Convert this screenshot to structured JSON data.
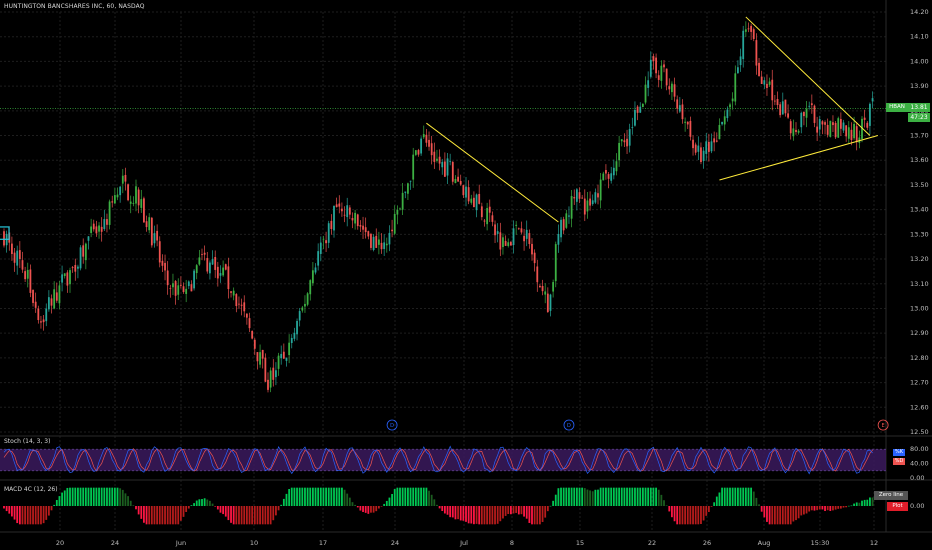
{
  "header": {
    "title": "HUNTINGTON BANCSHARES INC, 60, NASDAQ"
  },
  "price_scale": {
    "ticker_tag": "HBAN",
    "last_price": "13.81",
    "countdown": "47:23",
    "tag_color": "#3cb043"
  },
  "stoch": {
    "label": "Stoch (14, 3, 3)",
    "k_label": "%K",
    "d_label": "%D",
    "k_color": "#2962ff",
    "d_color": "#ef5350",
    "band_color": "#3b1a5e",
    "ticks": [
      "80.00",
      "40.00",
      "0.00"
    ],
    "tick_values": [
      80,
      40,
      0
    ]
  },
  "macd": {
    "label": "MACD 4C (12, 26)",
    "zero_line_label": "Zero line",
    "plot_label": "Plot",
    "zero_tick": "0.00"
  },
  "events": [
    {
      "label": "D",
      "x_index": 147,
      "color": "#2962ff"
    },
    {
      "label": "D",
      "x_index": 214,
      "color": "#2962ff"
    },
    {
      "label": "E",
      "x_index": 333,
      "color": "#ef5350"
    }
  ],
  "colors": {
    "up": "#26a69a",
    "up_bright": "#3cb043",
    "down": "#ef5350",
    "trendline": "#ffeb3b",
    "grid": "#1e1e1e",
    "price_line": "#3cb043"
  },
  "chart_data": {
    "type": "candlestick",
    "title": "HUNTINGTON BANCSHARES INC, 60, NASDAQ",
    "ylim": [
      12.5,
      14.2
    ],
    "y_ticks": [
      14.2,
      14.1,
      14.0,
      13.9,
      13.8,
      13.7,
      13.6,
      13.5,
      13.4,
      13.3,
      13.2,
      13.1,
      13.0,
      12.9,
      12.8,
      12.7,
      12.6,
      12.5
    ],
    "x_ticks": [
      "20",
      "24",
      "Jun",
      "10",
      "17",
      "24",
      "Jul",
      "8",
      "15",
      "22",
      "26",
      "Aug",
      "15:30",
      "12"
    ],
    "last_price": 13.81,
    "close_path": [
      [
        0,
        13.3
      ],
      [
        8,
        13.15
      ],
      [
        14,
        12.95
      ],
      [
        22,
        13.1
      ],
      [
        30,
        13.25
      ],
      [
        38,
        13.35
      ],
      [
        45,
        13.5
      ],
      [
        50,
        13.45
      ],
      [
        56,
        13.3
      ],
      [
        62,
        13.1
      ],
      [
        68,
        13.05
      ],
      [
        75,
        13.2
      ],
      [
        82,
        13.15
      ],
      [
        88,
        13.05
      ],
      [
        95,
        12.85
      ],
      [
        100,
        12.7
      ],
      [
        106,
        12.8
      ],
      [
        112,
        12.95
      ],
      [
        118,
        13.2
      ],
      [
        126,
        13.4
      ],
      [
        134,
        13.35
      ],
      [
        142,
        13.25
      ],
      [
        150,
        13.4
      ],
      [
        158,
        13.7
      ],
      [
        164,
        13.6
      ],
      [
        170,
        13.55
      ],
      [
        177,
        13.45
      ],
      [
        184,
        13.35
      ],
      [
        190,
        13.25
      ],
      [
        196,
        13.35
      ],
      [
        202,
        13.15
      ],
      [
        206,
        13.0
      ],
      [
        210,
        13.3
      ],
      [
        216,
        13.45
      ],
      [
        222,
        13.4
      ],
      [
        228,
        13.55
      ],
      [
        234,
        13.65
      ],
      [
        240,
        13.8
      ],
      [
        246,
        14.0
      ],
      [
        252,
        13.9
      ],
      [
        258,
        13.75
      ],
      [
        264,
        13.6
      ],
      [
        270,
        13.7
      ],
      [
        276,
        13.85
      ],
      [
        281,
        14.15
      ],
      [
        287,
        13.95
      ],
      [
        293,
        13.85
      ],
      [
        299,
        13.7
      ],
      [
        305,
        13.8
      ],
      [
        311,
        13.7
      ],
      [
        317,
        13.75
      ],
      [
        323,
        13.7
      ],
      [
        329,
        13.81
      ]
    ],
    "stoch_ylim": [
      0,
      100
    ],
    "macd_ylim": [
      -0.06,
      0.06
    ],
    "trendlines": [
      {
        "name": "June descending",
        "from": [
          160,
          13.75
        ],
        "to": [
          210,
          13.35
        ]
      },
      {
        "name": "July upper",
        "from": [
          281,
          14.18
        ],
        "to": [
          328,
          13.7
        ]
      },
      {
        "name": "July lower",
        "from": [
          271,
          13.52
        ],
        "to": [
          331,
          13.7
        ]
      }
    ],
    "grid": true
  }
}
